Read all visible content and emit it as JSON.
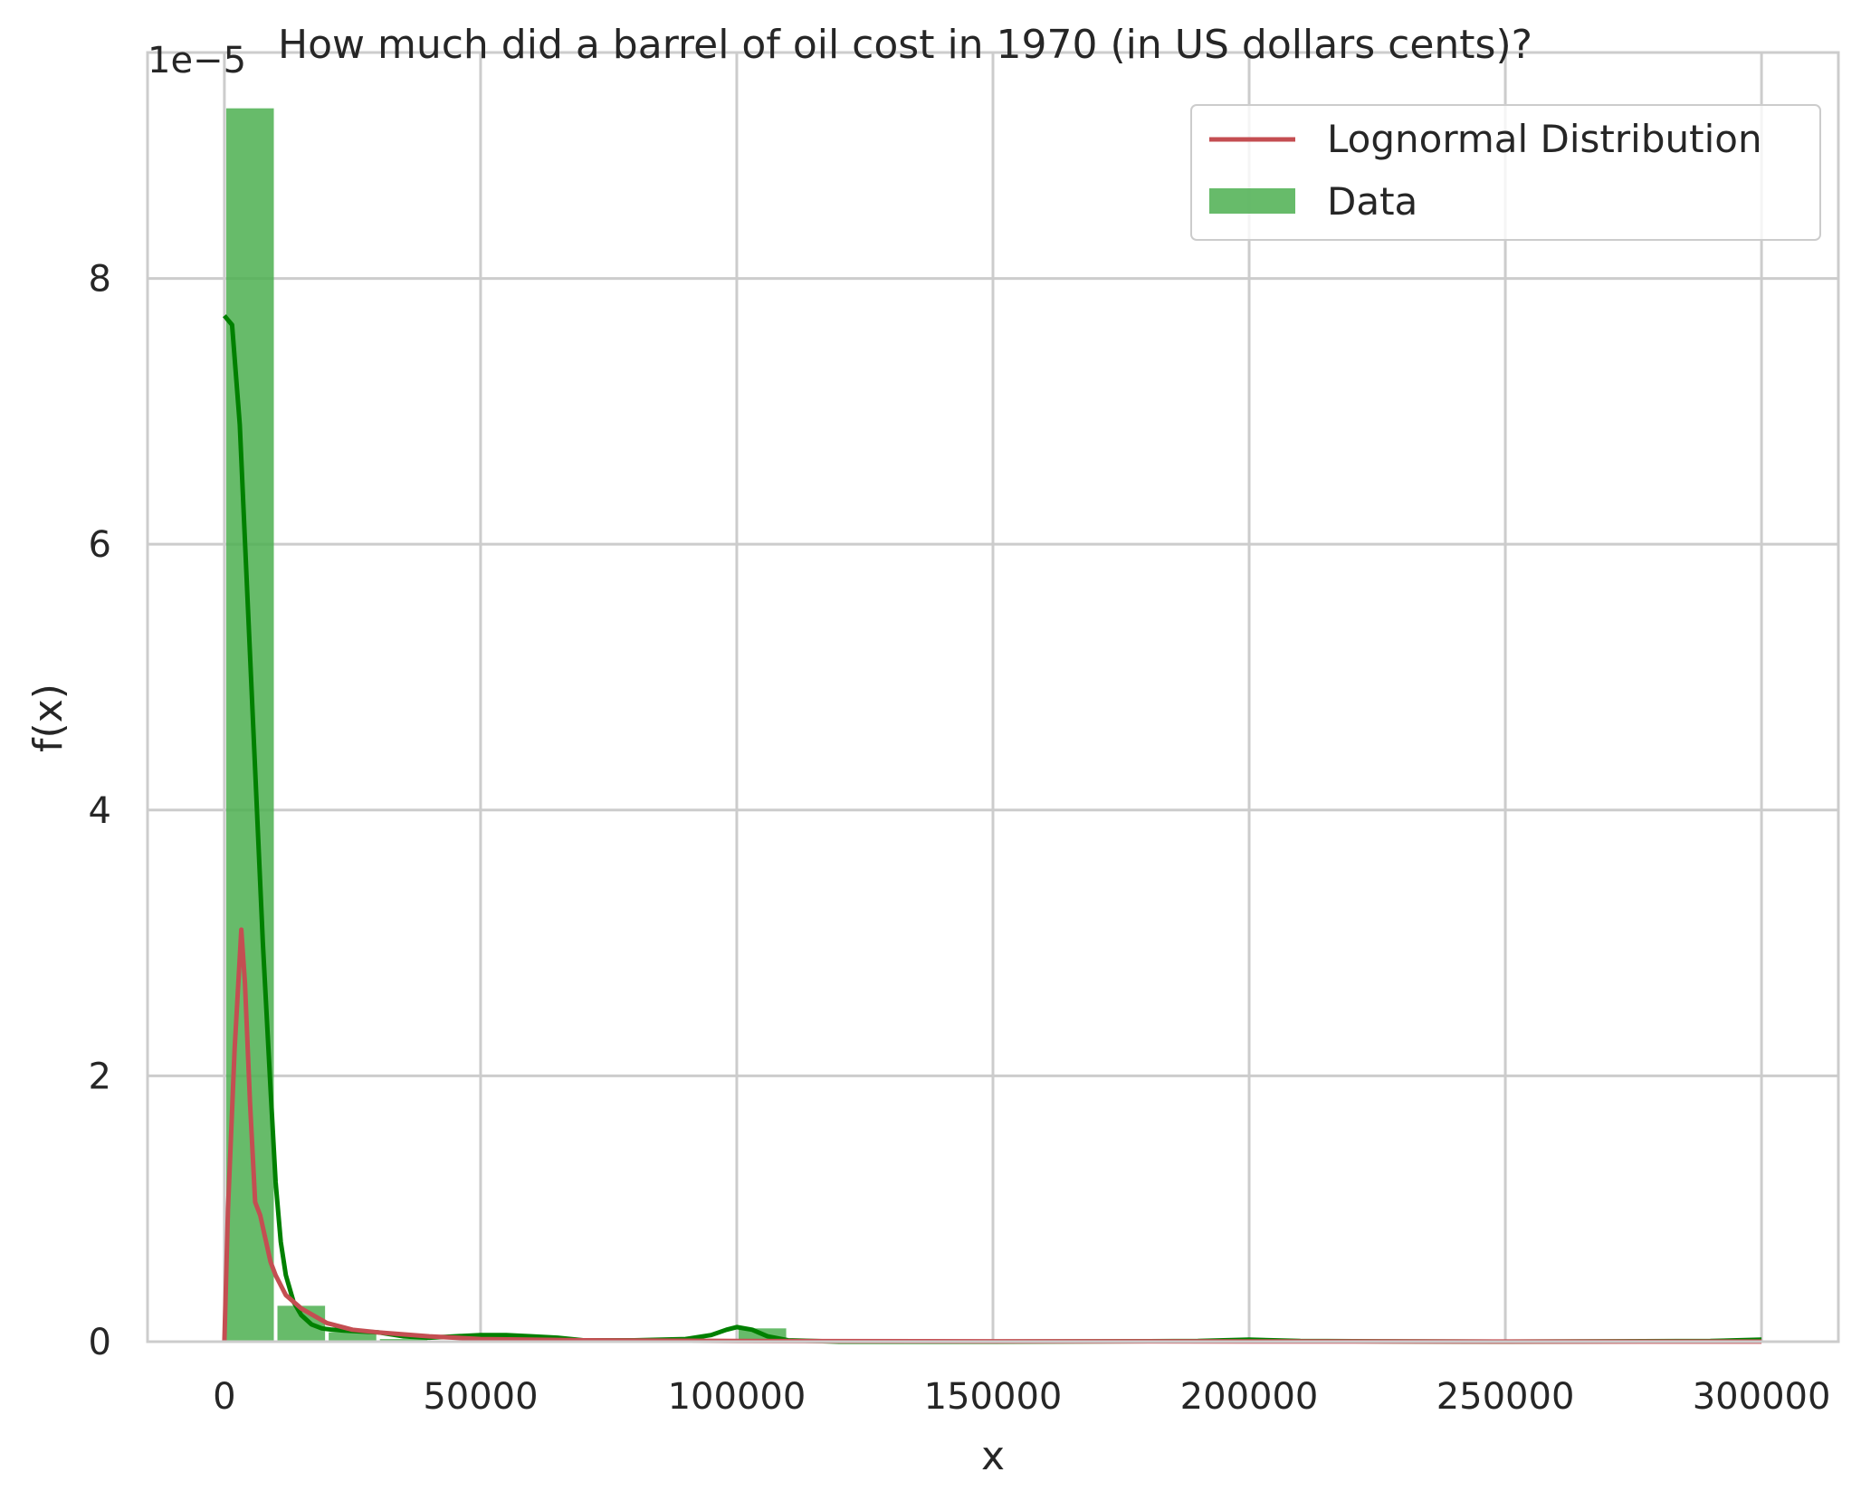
{
  "chart_data": {
    "type": "bar",
    "title": "How much did a barrel of oil cost in 1970 (in US dollars cents)?",
    "xlabel": "x",
    "ylabel": "f(x)",
    "y_offset_text": "1e−5",
    "y_scale_exponent": -5,
    "xlim": [
      -15000,
      315000
    ],
    "ylim": [
      0,
      9.7
    ],
    "x_ticks": [
      0,
      50000,
      100000,
      150000,
      200000,
      250000,
      300000
    ],
    "x_tick_labels": [
      "0",
      "50000",
      "100000",
      "150000",
      "200000",
      "250000",
      "300000"
    ],
    "y_ticks": [
      0,
      2,
      4,
      6,
      8
    ],
    "y_tick_labels": [
      "0",
      "2",
      "4",
      "6",
      "8"
    ],
    "grid": true,
    "legend_position": "top-right",
    "colors": {
      "bars": "#4caf50",
      "kde": "#008000",
      "lognormal": "#c44e52",
      "grid": "#cccccc",
      "frame": "#cccccc"
    },
    "histogram": {
      "name": "Data",
      "bin_width": 10000,
      "bins": [
        {
          "x0": 0,
          "x1": 10000,
          "value": 9.28
        },
        {
          "x0": 10000,
          "x1": 20000,
          "value": 0.27
        },
        {
          "x0": 20000,
          "x1": 30000,
          "value": 0.07
        },
        {
          "x0": 30000,
          "x1": 40000,
          "value": 0.02
        },
        {
          "x0": 40000,
          "x1": 50000,
          "value": 0.0
        },
        {
          "x0": 50000,
          "x1": 60000,
          "value": 0.02
        },
        {
          "x0": 60000,
          "x1": 70000,
          "value": 0.0
        },
        {
          "x0": 70000,
          "x1": 80000,
          "value": 0.0
        },
        {
          "x0": 80000,
          "x1": 90000,
          "value": 0.0
        },
        {
          "x0": 90000,
          "x1": 100000,
          "value": 0.0
        },
        {
          "x0": 100000,
          "x1": 110000,
          "value": 0.1
        },
        {
          "x0": 110000,
          "x1": 120000,
          "value": 0.0
        }
      ]
    },
    "series": [
      {
        "name": "Lognormal Distribution",
        "type": "line",
        "x": [
          0,
          700,
          2000,
          3300,
          4000,
          5000,
          6000,
          7000,
          9000,
          10000,
          12000,
          15000,
          20000,
          25000,
          30000,
          40000,
          50000,
          70000,
          100000,
          150000,
          200000,
          250000,
          300000
        ],
        "y": [
          0.0,
          1.0,
          2.2,
          3.1,
          2.7,
          1.8,
          1.05,
          0.95,
          0.6,
          0.5,
          0.35,
          0.25,
          0.14,
          0.09,
          0.07,
          0.04,
          0.02,
          0.01,
          0.005,
          0.003,
          0.002,
          0.001,
          0.001
        ]
      },
      {
        "name": "",
        "type": "line",
        "x": [
          0,
          1500,
          3000,
          4500,
          6000,
          7500,
          9000,
          10000,
          11000,
          12000,
          13500,
          15000,
          17000,
          19000,
          21000,
          25000,
          30000,
          35000,
          40000,
          45000,
          50000,
          55000,
          60000,
          65000,
          70000,
          80000,
          90000,
          95000,
          98000,
          100000,
          103000,
          106000,
          110000,
          120000,
          150000,
          190000,
          200000,
          210000,
          250000,
          290000,
          300000
        ],
        "y": [
          7.72,
          7.65,
          6.9,
          5.6,
          4.3,
          3.0,
          1.9,
          1.2,
          0.75,
          0.5,
          0.3,
          0.2,
          0.13,
          0.1,
          0.09,
          0.08,
          0.07,
          0.04,
          0.03,
          0.04,
          0.05,
          0.05,
          0.04,
          0.03,
          0.01,
          0.01,
          0.02,
          0.05,
          0.09,
          0.11,
          0.09,
          0.04,
          0.01,
          0.0,
          0.0,
          0.005,
          0.015,
          0.005,
          0.0,
          0.005,
          0.015
        ]
      }
    ]
  }
}
